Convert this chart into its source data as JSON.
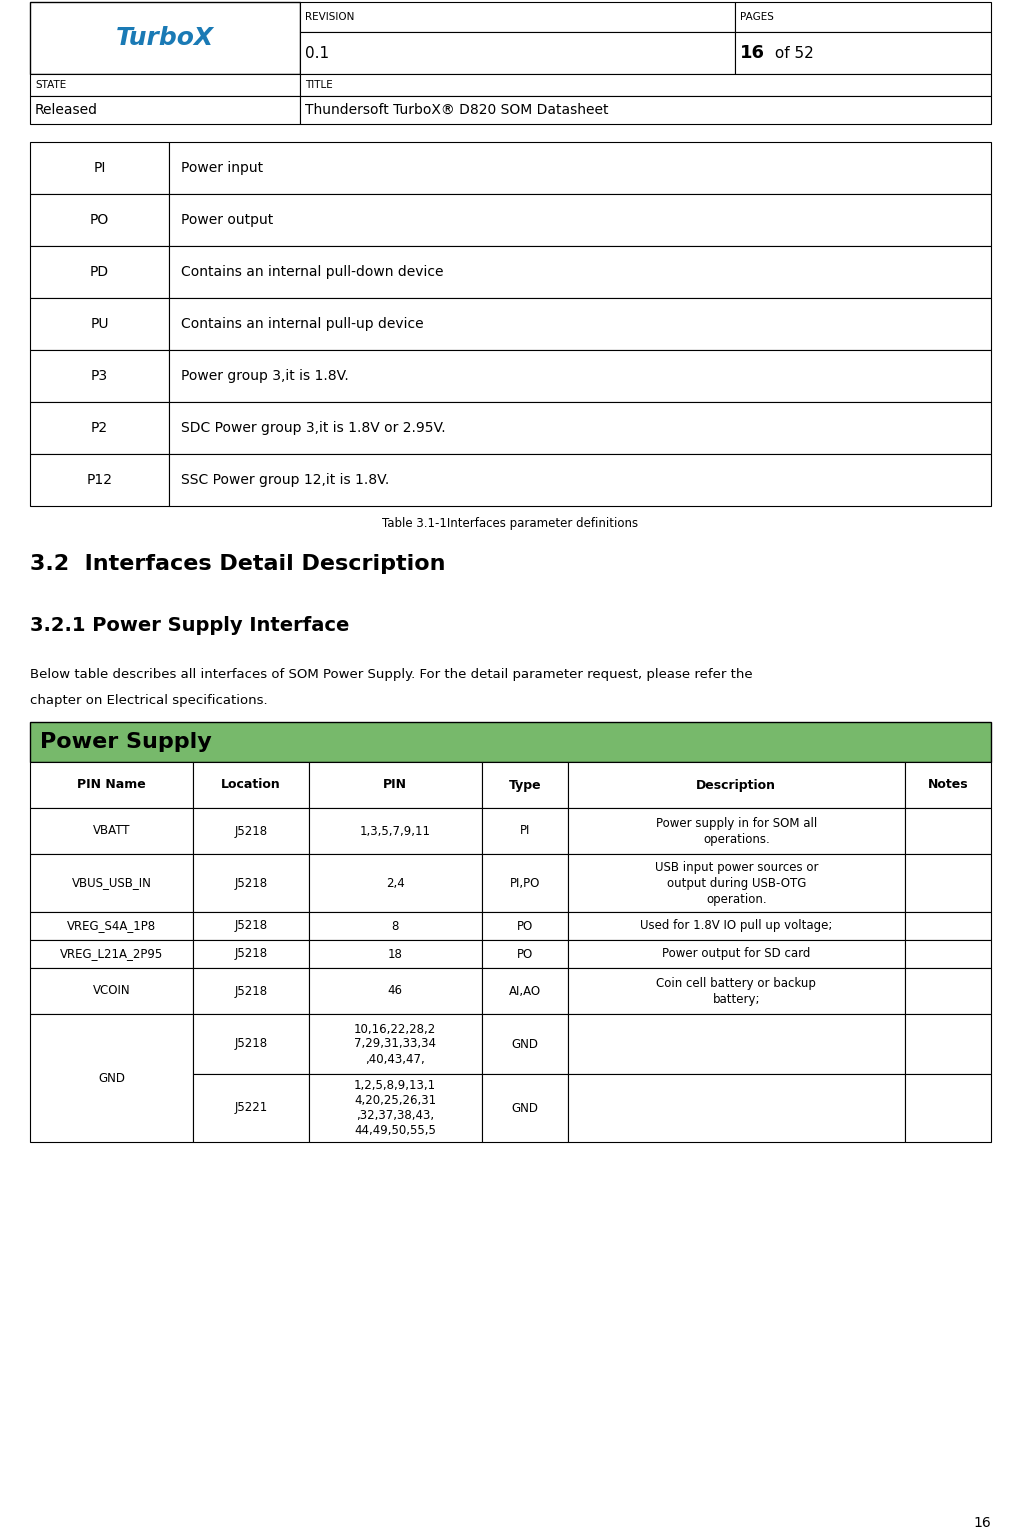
{
  "header": {
    "revision_label": "REVISION",
    "revision_value": "0.1",
    "pages_label": "PAGES",
    "pages_value_bold": "16",
    "pages_value_rest": " of 52",
    "state_label": "STATE",
    "title_label": "TITLE",
    "state_value": "Released",
    "title_value": "Thundersoft TurboX® D820 SOM Datasheet",
    "logo_text": "TurboX"
  },
  "table1": {
    "rows": [
      [
        "PI",
        "Power input"
      ],
      [
        "PO",
        "Power output"
      ],
      [
        "PD",
        "Contains an internal pull-down device"
      ],
      [
        "PU",
        "Contains an internal pull-up device"
      ],
      [
        "P3",
        "Power group 3,it is 1.8V."
      ],
      [
        "P2",
        "SDC Power group 3,it is 1.8V or 2.95V."
      ],
      [
        "P12",
        "SSC Power group 12,it is 1.8V."
      ]
    ],
    "caption": "Table 3.1-1Interfaces parameter definitions"
  },
  "section_32": "3.2  Interfaces Detail Description",
  "section_321": "3.2.1 Power Supply Interface",
  "para_line1": "Below table describes all interfaces of SOM Power Supply. For the detail parameter request, please refer the",
  "para_line2": "chapter on Electrical specifications.",
  "power_supply_header": "Power Supply",
  "power_supply_header_bg": "#77b96b",
  "table2_headers": [
    "PIN Name",
    "Location",
    "PIN",
    "Type",
    "Description",
    "Notes"
  ],
  "table2_col_ratios": [
    0.17,
    0.12,
    0.18,
    0.09,
    0.35,
    0.09
  ],
  "table2_rows": [
    {
      "name": "VBATT",
      "loc": "J5218",
      "pin": "1,3,5,7,9,11",
      "type": "PI",
      "desc_lines": [
        "Power supply in for SOM all",
        "operations."
      ],
      "notes": ""
    },
    {
      "name": "VBUS_USB_IN",
      "loc": "J5218",
      "pin": "2,4",
      "type": "PI,PO",
      "desc_lines": [
        "USB input power sources or",
        "output during USB-OTG",
        "operation."
      ],
      "notes": ""
    },
    {
      "name": "VREG_S4A_1P8",
      "loc": "J5218",
      "pin": "8",
      "type": "PO",
      "desc_lines": [
        "Used for 1.8V IO pull up voltage;"
      ],
      "notes": ""
    },
    {
      "name": "VREG_L21A_2P95",
      "loc": "J5218",
      "pin": "18",
      "type": "PO",
      "desc_lines": [
        "Power output for SD card"
      ],
      "notes": ""
    },
    {
      "name": "VCOIN",
      "loc": "J5218",
      "pin": "46",
      "type": "AI,AO",
      "desc_lines": [
        "Coin cell battery or backup",
        "battery;"
      ],
      "notes": ""
    }
  ],
  "gnd_rows": [
    {
      "loc": "J5218",
      "pin_lines": [
        "10,16,22,28,2",
        "7,29,31,33,34",
        ",40,43,47,"
      ],
      "type": "GND"
    },
    {
      "loc": "J5221",
      "pin_lines": [
        "1,2,5,8,9,13,1",
        "4,20,25,26,31",
        ",32,37,38,43,",
        "44,49,50,55,5"
      ],
      "type": "GND"
    }
  ],
  "page_number": "16",
  "bg": "#ffffff",
  "lw": 0.8,
  "lw_thick": 1.0
}
